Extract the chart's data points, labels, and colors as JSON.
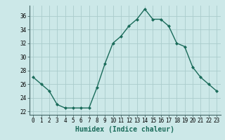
{
  "x": [
    0,
    1,
    2,
    3,
    4,
    5,
    6,
    7,
    8,
    9,
    10,
    11,
    12,
    13,
    14,
    15,
    16,
    17,
    18,
    19,
    20,
    21,
    22,
    23
  ],
  "y": [
    27,
    26,
    25,
    23,
    22.5,
    22.5,
    22.5,
    22.5,
    25.5,
    29,
    32,
    33,
    34.5,
    35.5,
    37,
    35.5,
    35.5,
    34.5,
    32,
    31.5,
    28.5,
    27,
    26,
    25
  ],
  "line_color": "#1a6b5a",
  "marker": "D",
  "marker_size": 2.0,
  "bg_color": "#cce8e8",
  "grid_color": "#aacccc",
  "xlabel": "Humidex (Indice chaleur)",
  "xlim": [
    -0.5,
    23.5
  ],
  "ylim": [
    21.5,
    37.5
  ],
  "yticks": [
    22,
    24,
    26,
    28,
    30,
    32,
    34,
    36
  ],
  "xticks": [
    0,
    1,
    2,
    3,
    4,
    5,
    6,
    7,
    8,
    9,
    10,
    11,
    12,
    13,
    14,
    15,
    16,
    17,
    18,
    19,
    20,
    21,
    22,
    23
  ],
  "tick_fontsize": 5.5,
  "label_fontsize": 7.0,
  "line_width": 1.0
}
